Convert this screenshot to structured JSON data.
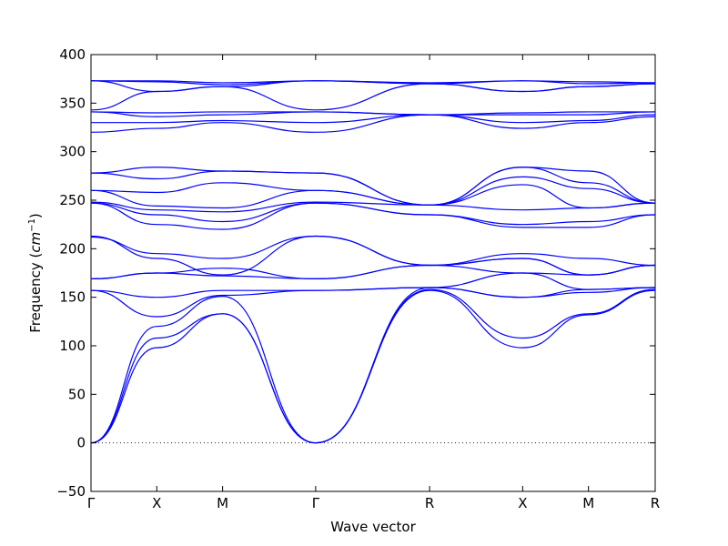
{
  "chart_data": {
    "type": "line",
    "title": "",
    "xlabel": "Wave vector",
    "ylabel_main": "Frequency (",
    "ylabel_unit": "cm",
    "ylabel_exp": "−1",
    "ylabel_close": ")",
    "ylim": [
      -50,
      400
    ],
    "yticks": [
      -50,
      0,
      50,
      100,
      150,
      200,
      250,
      300,
      350,
      400
    ],
    "ytick_labels": [
      "−50",
      "0",
      "50",
      "100",
      "150",
      "200",
      "250",
      "300",
      "350",
      "400"
    ],
    "series_color": "#0000ff",
    "zero_line": true,
    "kpoints": [
      {
        "label": "Γ",
        "x": 0.0
      },
      {
        "label": "X",
        "x": 0.5
      },
      {
        "label": "M",
        "x": 1.0
      },
      {
        "label": "Γ",
        "x": 1.707
      },
      {
        "label": "R",
        "x": 2.573
      },
      {
        "label": "X",
        "x": 3.28
      },
      {
        "label": "M",
        "x": 3.78
      },
      {
        "label": "R",
        "x": 4.287
      }
    ],
    "series": [
      {
        "x": [
          0,
          0.5,
          1.0,
          1.707,
          2.573,
          3.28,
          3.78,
          4.287
        ],
        "values": [
          0,
          98,
          133,
          0,
          157,
          98,
          132,
          157
        ]
      },
      {
        "x": [
          0,
          0.5,
          1.0,
          1.707,
          2.573,
          3.28,
          3.78,
          4.287
        ],
        "values": [
          0,
          108,
          133,
          0,
          158,
          108,
          133,
          158
        ]
      },
      {
        "x": [
          0,
          0.5,
          1.0,
          1.707,
          2.573,
          3.28,
          3.78,
          4.287
        ],
        "values": [
          0,
          120,
          151,
          0,
          160,
          150,
          155,
          160
        ]
      },
      {
        "x": [
          0,
          0.5,
          1.0,
          1.707,
          2.573,
          3.28,
          3.78,
          4.287
        ],
        "values": [
          157,
          130,
          152,
          157,
          160,
          150,
          158,
          160
        ]
      },
      {
        "x": [
          0,
          0.5,
          1.0,
          1.707,
          2.573,
          3.28,
          3.78,
          4.287
        ],
        "values": [
          157,
          150,
          157,
          157,
          160,
          175,
          158,
          160
        ]
      },
      {
        "x": [
          0,
          0.5,
          1.0,
          1.707,
          2.573,
          3.28,
          3.78,
          4.287
        ],
        "values": [
          169,
          175,
          172,
          169,
          183,
          175,
          173,
          183
        ]
      },
      {
        "x": [
          0,
          0.5,
          1.0,
          1.707,
          2.573,
          3.28,
          3.78,
          4.287
        ],
        "values": [
          169,
          175,
          180,
          169,
          183,
          190,
          173,
          183
        ]
      },
      {
        "x": [
          0,
          0.5,
          1.0,
          1.707,
          2.573,
          3.28,
          3.78,
          4.287
        ],
        "values": [
          212,
          195,
          190,
          213,
          183,
          195,
          190,
          183
        ]
      },
      {
        "x": [
          0,
          0.5,
          1.0,
          1.707,
          2.573,
          3.28,
          3.78,
          4.287
        ],
        "values": [
          213,
          190,
          173,
          213,
          183,
          190,
          173,
          183
        ]
      },
      {
        "x": [
          0,
          0.5,
          1.0,
          1.707,
          2.573,
          3.28,
          3.78,
          4.287
        ],
        "values": [
          247,
          225,
          220,
          247,
          235,
          222,
          222,
          235
        ]
      },
      {
        "x": [
          0,
          0.5,
          1.0,
          1.707,
          2.573,
          3.28,
          3.78,
          4.287
        ],
        "values": [
          247,
          235,
          228,
          247,
          235,
          225,
          228,
          235
        ]
      },
      {
        "x": [
          0,
          0.5,
          1.0,
          1.707,
          2.573,
          3.28,
          3.78,
          4.287
        ],
        "values": [
          248,
          240,
          238,
          248,
          245,
          240,
          242,
          247
        ]
      },
      {
        "x": [
          0,
          0.5,
          1.0,
          1.707,
          2.573,
          3.28,
          3.78,
          4.287
        ],
        "values": [
          260,
          244,
          242,
          260,
          245,
          266,
          242,
          247
        ]
      },
      {
        "x": [
          0,
          0.5,
          1.0,
          1.707,
          2.573,
          3.28,
          3.78,
          4.287
        ],
        "values": [
          260,
          258,
          268,
          260,
          245,
          274,
          262,
          247
        ]
      },
      {
        "x": [
          0,
          0.5,
          1.0,
          1.707,
          2.573,
          3.28,
          3.78,
          4.287
        ],
        "values": [
          278,
          272,
          280,
          278,
          245,
          284,
          268,
          247
        ]
      },
      {
        "x": [
          0,
          0.5,
          1.0,
          1.707,
          2.573,
          3.28,
          3.78,
          4.287
        ],
        "values": [
          278,
          284,
          280,
          278,
          245,
          284,
          280,
          247
        ]
      },
      {
        "x": [
          0,
          0.5,
          1.0,
          1.707,
          2.573,
          3.28,
          3.78,
          4.287
        ],
        "values": [
          320,
          324,
          330,
          320,
          338,
          324,
          330,
          336
        ]
      },
      {
        "x": [
          0,
          0.5,
          1.0,
          1.707,
          2.573,
          3.28,
          3.78,
          4.287
        ],
        "values": [
          330,
          330,
          332,
          330,
          338,
          330,
          332,
          338
        ]
      },
      {
        "x": [
          0,
          0.5,
          1.0,
          1.707,
          2.573,
          3.28,
          3.78,
          4.287
        ],
        "values": [
          341,
          336,
          338,
          341,
          338,
          338,
          338,
          341
        ]
      },
      {
        "x": [
          0,
          0.5,
          1.0,
          1.707,
          2.573,
          3.28,
          3.78,
          4.287
        ],
        "values": [
          341,
          340,
          341,
          341,
          338,
          340,
          341,
          341
        ]
      },
      {
        "x": [
          0,
          0.5,
          1.0,
          1.707,
          2.573,
          3.28,
          3.78,
          4.287
        ],
        "values": [
          343,
          362,
          367,
          343,
          370,
          362,
          367,
          370
        ]
      },
      {
        "x": [
          0,
          0.5,
          1.0,
          1.707,
          2.573,
          3.28,
          3.78,
          4.287
        ],
        "values": [
          373,
          362,
          367,
          373,
          370,
          362,
          367,
          370
        ]
      },
      {
        "x": [
          0,
          0.5,
          1.0,
          1.707,
          2.573,
          3.28,
          3.78,
          4.287
        ],
        "values": [
          373,
          372,
          369,
          373,
          370,
          373,
          370,
          371
        ]
      },
      {
        "x": [
          0,
          0.5,
          1.0,
          1.707,
          2.573,
          3.28,
          3.78,
          4.287
        ],
        "values": [
          373,
          373,
          371,
          373,
          371,
          373,
          372,
          371
        ]
      }
    ]
  }
}
